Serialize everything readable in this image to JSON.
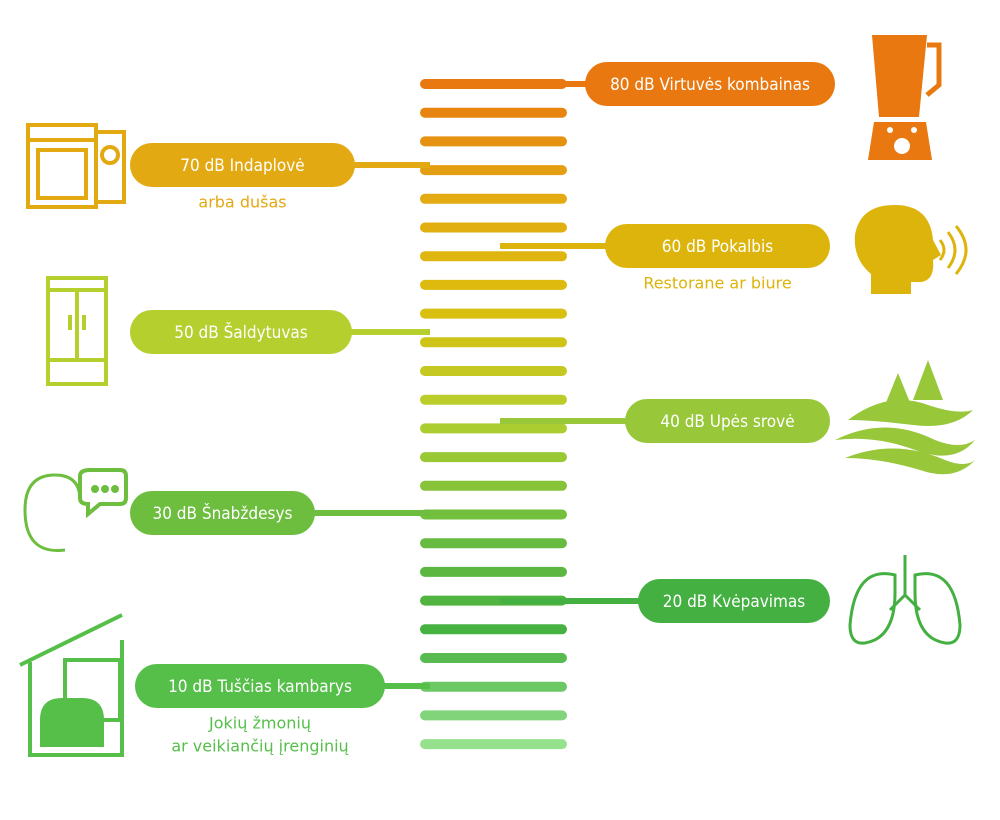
{
  "items": [
    {
      "label": "80 dB Virtuvės kombainas",
      "color": "#e8780f"
    },
    {
      "label": "70 dB Indaplovė",
      "sublabel": [
        "arba dušas"
      ],
      "color": "#e3a912"
    },
    {
      "label": "60 dB Pokalbis",
      "sublabel": [
        "Restorane ar biure"
      ],
      "color": "#dcb40c"
    },
    {
      "label": "50 dB Šaldytuvas",
      "color": "#b5cf2e"
    },
    {
      "label": "40 dB Upės srovė",
      "color": "#98c73a"
    },
    {
      "label": "30 dB Šnabždesys",
      "color": "#6dbd3f"
    },
    {
      "label": "20 dB Kvėpavimas",
      "color": "#45b042"
    },
    {
      "label": "10 dB Tuščias kambarys",
      "sublabel": [
        "Jokių žmonių",
        "ar veikiančių įrenginių"
      ],
      "color": "#55bf4a"
    }
  ]
}
